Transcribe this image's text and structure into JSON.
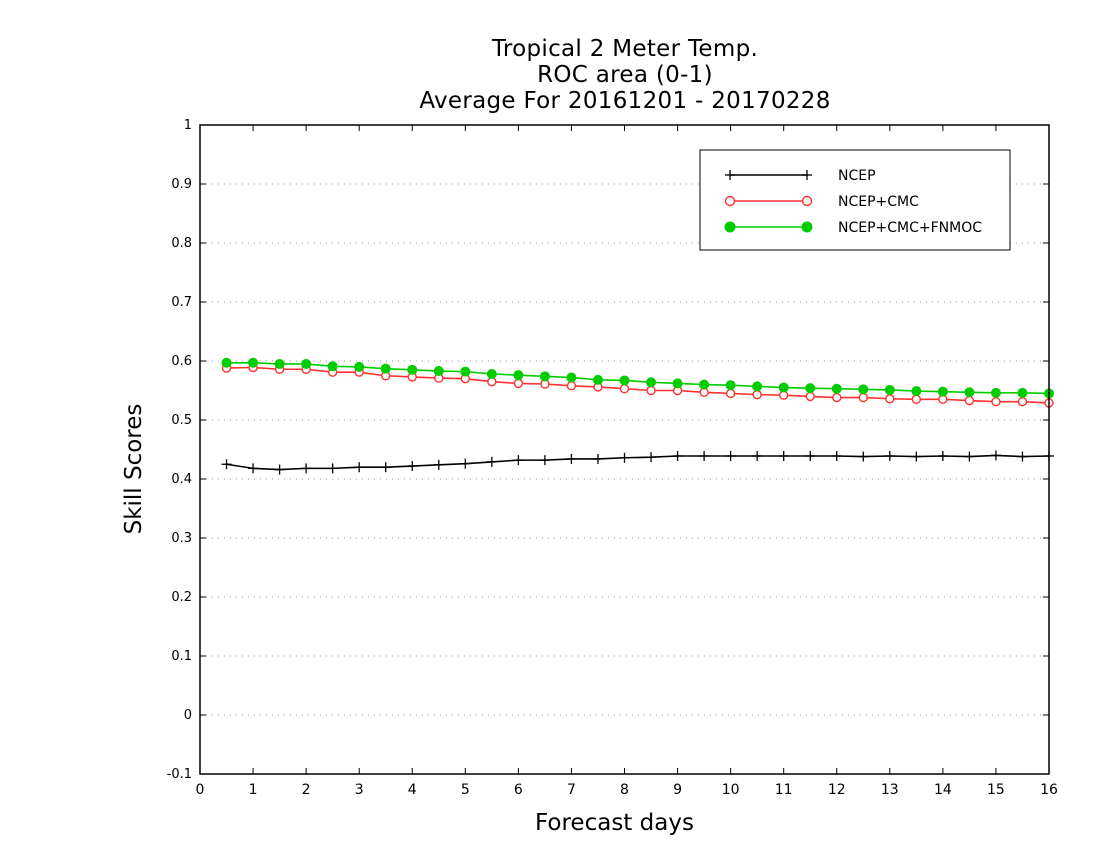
{
  "chart_data": {
    "type": "line",
    "title": [
      "Tropical 2 Meter Temp.",
      "ROC area (0-1)",
      "Average For 20161201 - 20170228"
    ],
    "xlabel": "Forecast days",
    "ylabel": "Skill Scores",
    "xlim": [
      0,
      16
    ],
    "ylim": [
      -0.1,
      1
    ],
    "xticks": [
      "0",
      "1",
      "2",
      "3",
      "4",
      "5",
      "6",
      "7",
      "8",
      "9",
      "10",
      "11",
      "12",
      "13",
      "14",
      "15",
      "16"
    ],
    "yticks": [
      "-0.1",
      "0",
      "0.1",
      "0.2",
      "0.3",
      "0.4",
      "0.5",
      "0.6",
      "0.7",
      "0.8",
      "0.9",
      "1"
    ],
    "grid": "horizontal dotted",
    "legend_position": "top-right",
    "x": [
      0.5,
      1,
      1.5,
      2,
      2.5,
      3,
      3.5,
      4,
      4.5,
      5,
      5.5,
      6,
      6.5,
      7,
      7.5,
      8,
      8.5,
      9,
      9.5,
      10,
      10.5,
      11,
      11.5,
      12,
      12.5,
      13,
      13.5,
      14,
      14.5,
      15,
      15.5,
      16
    ],
    "series": [
      {
        "name": "NCEP",
        "color": "#000000",
        "marker": "plus",
        "values": [
          0.425,
          0.418,
          0.416,
          0.418,
          0.418,
          0.42,
          0.42,
          0.422,
          0.424,
          0.426,
          0.429,
          0.432,
          0.432,
          0.434,
          0.434,
          0.436,
          0.437,
          0.439,
          0.439,
          0.439,
          0.439,
          0.439,
          0.439,
          0.439,
          0.438,
          0.439,
          0.438,
          0.439,
          0.438,
          0.44,
          0.438,
          0.439
        ]
      },
      {
        "name": "NCEP+CMC",
        "color": "#ff3030",
        "marker": "open-circle",
        "values": [
          0.588,
          0.589,
          0.586,
          0.586,
          0.581,
          0.581,
          0.575,
          0.573,
          0.571,
          0.57,
          0.565,
          0.562,
          0.561,
          0.558,
          0.556,
          0.553,
          0.55,
          0.55,
          0.547,
          0.545,
          0.543,
          0.542,
          0.54,
          0.538,
          0.538,
          0.536,
          0.535,
          0.535,
          0.533,
          0.531,
          0.531,
          0.529
        ]
      },
      {
        "name": "NCEP+CMC+FNMOC",
        "color": "#00cc00",
        "marker": "filled-circle",
        "values": [
          0.597,
          0.597,
          0.595,
          0.595,
          0.591,
          0.59,
          0.587,
          0.585,
          0.583,
          0.582,
          0.578,
          0.576,
          0.574,
          0.572,
          0.568,
          0.567,
          0.564,
          0.562,
          0.56,
          0.559,
          0.557,
          0.555,
          0.554,
          0.553,
          0.552,
          0.551,
          0.549,
          0.548,
          0.547,
          0.546,
          0.546,
          0.545
        ]
      }
    ]
  }
}
